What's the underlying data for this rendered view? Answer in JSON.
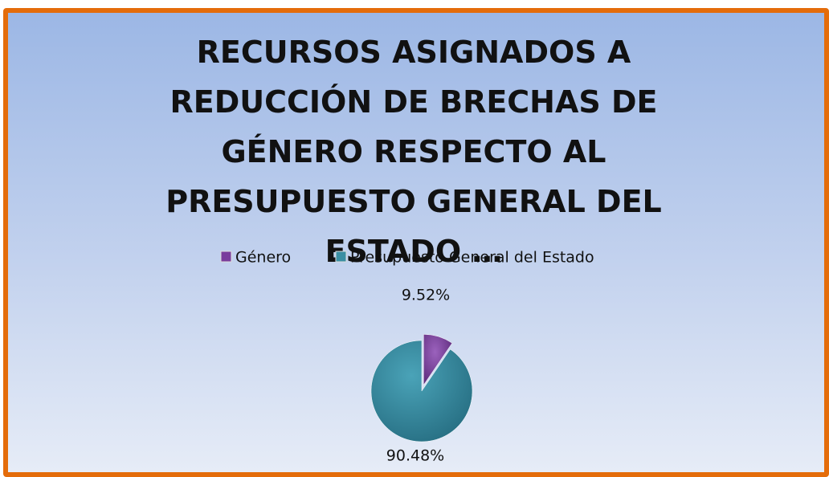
{
  "chart_data": {
    "type": "pie",
    "title": "RECURSOS ASIGNADOS A REDUCCIÓN DE BRECHAS DE GÉNERO RESPECTO AL PRESUPUESTO GENERAL DEL ESTADO …",
    "categories": [
      "Género",
      "Presupuesto General del Estado"
    ],
    "values": [
      9.52,
      90.48
    ],
    "value_labels": [
      "9.52%",
      "90.48%"
    ],
    "colors": [
      "#7a3d9c",
      "#3a8ea3"
    ],
    "legend": "top"
  }
}
